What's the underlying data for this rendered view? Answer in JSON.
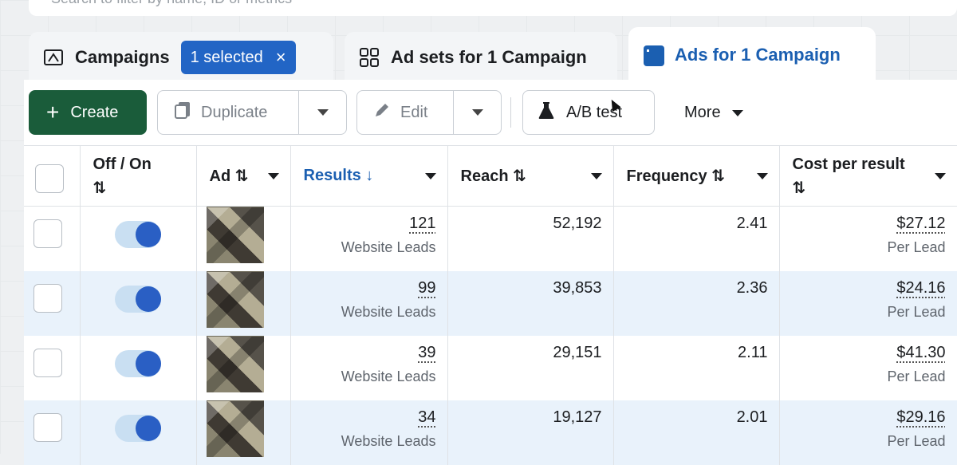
{
  "search": {
    "placeholder": "Search to filter by name, ID or metrics"
  },
  "tabs": [
    {
      "label": "Campaigns",
      "icon": "folder-icon"
    },
    {
      "label": "Ad sets for 1 Campaign",
      "icon": "grid-icon"
    },
    {
      "label": "Ads for 1 Campaign",
      "icon": "ad-window-icon"
    }
  ],
  "selection": {
    "label": "1 selected",
    "close": "×"
  },
  "toolbar": {
    "create_label": "Create",
    "create_icon": "+",
    "duplicate_label": "Duplicate",
    "edit_label": "Edit",
    "abtest_label": "A/B test",
    "more_label": "More"
  },
  "table": {
    "headers": {
      "offon": "Off / On",
      "offon_sort": "⇅",
      "ad": "Ad ⇅",
      "results": "Results ↓",
      "reach": "Reach ⇅",
      "frequency": "Frequency ⇅",
      "cost": "Cost per result",
      "cost_sort": "⇅"
    },
    "rows": [
      {
        "on": true,
        "results": "121",
        "results_label": "Website Leads",
        "reach": "52,192",
        "frequency": "2.41",
        "cost": "$27.12",
        "cost_label": "Per Lead"
      },
      {
        "on": true,
        "results": "99",
        "results_label": "Website Leads",
        "reach": "39,853",
        "frequency": "2.36",
        "cost": "$24.16",
        "cost_label": "Per Lead"
      },
      {
        "on": true,
        "results": "39",
        "results_label": "Website Leads",
        "reach": "29,151",
        "frequency": "2.11",
        "cost": "$41.30",
        "cost_label": "Per Lead"
      },
      {
        "on": true,
        "results": "34",
        "results_label": "Website Leads",
        "reach": "19,127",
        "frequency": "2.01",
        "cost": "$29.16",
        "cost_label": "Per Lead"
      }
    ]
  },
  "colors": {
    "accent": "#1b5fb1",
    "create_bg": "#1a5c3a",
    "selected_pill": "#2265c5",
    "toggle_knob": "#2a5fc4",
    "row_alt": "#e9f2fb"
  }
}
